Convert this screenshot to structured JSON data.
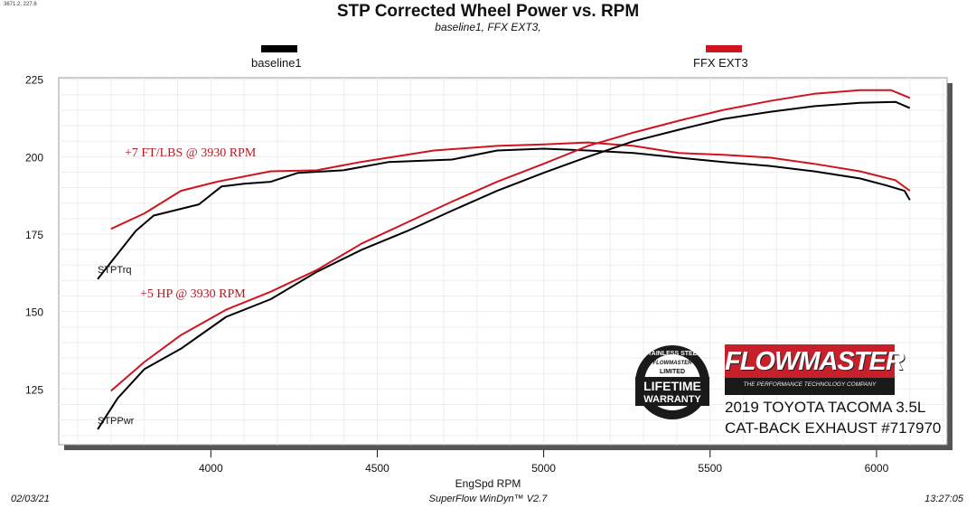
{
  "coord_readout": "3671.2, 227.6",
  "footer": {
    "date": "02/03/21",
    "software": "SuperFlow WinDyn™ V2.7",
    "time": "13:27:05"
  },
  "logos": {
    "warranty_top": "STAINLESS STEEL",
    "warranty_brand": "FLOWMASTER",
    "warranty_mid": "LIMITED",
    "warranty_line1": "LIFETIME",
    "warranty_line2": "WARRANTY",
    "brand": "FLOWMASTER",
    "brand_tagline": "THE PERFORMANCE TECHNOLOGY COMPANY"
  },
  "vehicle": {
    "line1": "2019 TOYOTA TACOMA 3.5L",
    "line2": "CAT-BACK EXHAUST #717970"
  },
  "chart_data": {
    "type": "line",
    "title": "STP Corrected Wheel Power vs. RPM",
    "subtitle": "baseline1, FFX EXT3,",
    "xlabel": "EngSpd  RPM",
    "ylabel": "",
    "xlim": [
      3543,
      6212
    ],
    "ylim": [
      107,
      225.5
    ],
    "xticks": [
      4000,
      4500,
      5000,
      5500,
      6000
    ],
    "yticks": [
      125,
      150,
      175,
      200,
      225
    ],
    "grid": true,
    "legend": [
      {
        "name": "baseline1",
        "color": "#000000"
      },
      {
        "name": "FFX EXT3",
        "color": "#d0141e"
      }
    ],
    "annotations": [
      {
        "text": "+7 FT/LBS @ 3930 RPM"
      },
      {
        "text": "+5 HP @ 3930 RPM"
      }
    ],
    "curve_labels": [
      "STPTrq",
      "STPPwr"
    ],
    "series": [
      {
        "name": "baseline1 STPTrq",
        "color": "#000000",
        "x": [
          3660,
          3774,
          3828,
          3964,
          4032,
          4100,
          4180,
          4262,
          4398,
          4535,
          4725,
          4860,
          5000,
          5133,
          5270,
          5405,
          5540,
          5680,
          5812,
          5950,
          6030,
          6084,
          6100
        ],
        "y": [
          160.5,
          176,
          181,
          184.6,
          190.4,
          191.3,
          191.9,
          194.8,
          195.6,
          198.3,
          199.1,
          202,
          202.6,
          202,
          201.2,
          199.7,
          198.3,
          197,
          195.3,
          193,
          190.7,
          189,
          186
        ]
      },
      {
        "name": "FFX EXT3 STPTrq",
        "color": "#d0141e",
        "x": [
          3700,
          3800,
          3910,
          4018,
          4180,
          4318,
          4450,
          4670,
          4860,
          5000,
          5133,
          5270,
          5405,
          5540,
          5680,
          5812,
          5950,
          6057,
          6100
        ],
        "y": [
          176.7,
          181.7,
          189,
          191.9,
          195.3,
          195.6,
          198.3,
          202,
          203.5,
          204,
          204.6,
          203.5,
          201.2,
          200.6,
          199.7,
          197.7,
          195.3,
          192.4,
          189
        ]
      },
      {
        "name": "baseline1 STPPwr",
        "color": "#000000",
        "x": [
          3660,
          3720,
          3800,
          3910,
          4046,
          4180,
          4318,
          4454,
          4590,
          4725,
          4860,
          5000,
          5133,
          5270,
          5405,
          5540,
          5680,
          5812,
          5950,
          6057,
          6100
        ],
        "y": [
          112,
          122,
          131.4,
          138,
          148.3,
          154,
          162.8,
          170,
          176,
          182.6,
          189,
          194.8,
          200,
          205,
          208.7,
          212.2,
          214.5,
          216.3,
          217.4,
          217.7,
          215.7
        ]
      },
      {
        "name": "FFX EXT3 STPPwr",
        "color": "#d0141e",
        "x": [
          3700,
          3800,
          3910,
          4046,
          4180,
          4318,
          4454,
          4590,
          4725,
          4860,
          5000,
          5133,
          5270,
          5405,
          5540,
          5680,
          5812,
          5950,
          6043,
          6100
        ],
        "y": [
          124.4,
          133.7,
          142.4,
          150.6,
          156.4,
          163.4,
          172,
          178.8,
          185.5,
          191.9,
          197.7,
          203.5,
          207.8,
          211.6,
          215.1,
          218,
          220.3,
          221.5,
          221.5,
          219
        ]
      }
    ]
  }
}
